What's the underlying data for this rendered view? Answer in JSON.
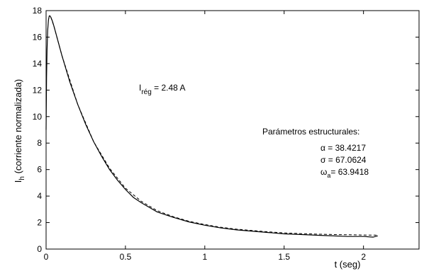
{
  "chart_data": {
    "type": "line",
    "xlabel": "t (seg)",
    "ylabel_main": "I",
    "ylabel_sub": "h",
    "ylabel_rest": " (corriente normalizada)",
    "xlim": [
      0,
      2.35
    ],
    "ylim": [
      0,
      18
    ],
    "xticks": [
      0,
      0.5,
      1,
      1.5,
      2
    ],
    "xtick_labels": [
      "0",
      "0.5",
      "1",
      "1.5",
      "2"
    ],
    "yticks": [
      0,
      2,
      4,
      6,
      8,
      10,
      12,
      14,
      16,
      18
    ],
    "ytick_labels": [
      "0",
      "2",
      "4",
      "6",
      "8",
      "10",
      "12",
      "14",
      "16",
      "18"
    ],
    "grid": false,
    "series": [
      {
        "style": "solid",
        "color": "#000000",
        "x": [
          0,
          0.003,
          0.006,
          0.01,
          0.015,
          0.02,
          0.025,
          0.03,
          0.04,
          0.05,
          0.075,
          0.1,
          0.15,
          0.2,
          0.25,
          0.3,
          0.35,
          0.4,
          0.45,
          0.5,
          0.55,
          0.6,
          0.7,
          0.8,
          0.9,
          1.0,
          1.1,
          1.2,
          1.3,
          1.4,
          1.5,
          1.6,
          1.7,
          1.8,
          1.9,
          2.0,
          2.06,
          2.09
        ],
        "y": [
          9.0,
          13.0,
          15.0,
          16.5,
          17.3,
          17.6,
          17.6,
          17.5,
          17.2,
          16.8,
          15.7,
          14.6,
          12.6,
          10.9,
          9.4,
          8.1,
          7.0,
          6.0,
          5.2,
          4.5,
          3.9,
          3.5,
          2.8,
          2.4,
          2.05,
          1.8,
          1.6,
          1.45,
          1.35,
          1.25,
          1.15,
          1.1,
          1.05,
          1.0,
          0.95,
          0.95,
          0.9,
          1.0
        ]
      },
      {
        "style": "dashed",
        "color": "#000000",
        "x": [
          0.03,
          0.05,
          0.1,
          0.2,
          0.3,
          0.4,
          0.5,
          0.6,
          0.7,
          0.8,
          0.9,
          1.0,
          1.1,
          1.2,
          1.3,
          1.4,
          1.5,
          1.6,
          1.7,
          1.8,
          1.9,
          2.0,
          2.09
        ],
        "y": [
          17.5,
          16.8,
          14.6,
          10.9,
          8.1,
          6.1,
          4.6,
          3.6,
          2.9,
          2.45,
          2.1,
          1.85,
          1.65,
          1.5,
          1.4,
          1.3,
          1.22,
          1.17,
          1.13,
          1.1,
          1.08,
          1.06,
          1.05
        ]
      }
    ],
    "annotations": {
      "ireg_main": "I",
      "ireg_sub": "rég",
      "ireg_value": " = 2.48 A",
      "params_title": "Parámetros estructurales:",
      "params": [
        {
          "symbol": "α",
          "sub": "",
          "value": "  = 38.4217"
        },
        {
          "symbol": "σ",
          "sub": "",
          "value": "  = 67.0624"
        },
        {
          "symbol": "ω",
          "sub": "a",
          "value": "= 63.9418"
        }
      ]
    }
  }
}
